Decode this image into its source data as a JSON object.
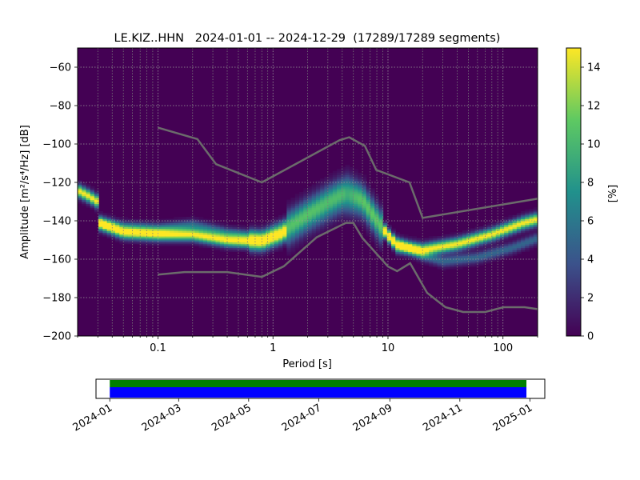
{
  "chart_data": {
    "type": "heatmap",
    "title": "LE.KIZ..HHN   2024-01-01 -- 2024-12-29  (17289/17289 segments)",
    "xlabel": "Period [s]",
    "ylabel": "Amplitude [m²/s⁴/Hz] [dB]",
    "x_scale": "log",
    "xlim": [
      0.02,
      200
    ],
    "ylim": [
      -200,
      -50
    ],
    "x_ticks": [
      {
        "value": 0.1,
        "label": "0.1"
      },
      {
        "value": 1,
        "label": "1"
      },
      {
        "value": 10,
        "label": "10"
      },
      {
        "value": 100,
        "label": "100"
      }
    ],
    "y_ticks": [
      {
        "value": -60,
        "label": "−60"
      },
      {
        "value": -80,
        "label": "−80"
      },
      {
        "value": -100,
        "label": "−100"
      },
      {
        "value": -120,
        "label": "−120"
      },
      {
        "value": -140,
        "label": "−140"
      },
      {
        "value": -160,
        "label": "−160"
      },
      {
        "value": -180,
        "label": "−180"
      },
      {
        "value": -200,
        "label": "−200"
      }
    ],
    "grid": true,
    "colormap": "viridis",
    "colorbar": {
      "label": "[%]",
      "range": [
        0,
        15
      ],
      "ticks": [
        {
          "value": 0,
          "label": "0"
        },
        {
          "value": 2,
          "label": "2"
        },
        {
          "value": 4,
          "label": "4"
        },
        {
          "value": 6,
          "label": "6"
        },
        {
          "value": 8,
          "label": "8"
        },
        {
          "value": 10,
          "label": "10"
        },
        {
          "value": 12,
          "label": "12"
        },
        {
          "value": 14,
          "label": "14"
        }
      ]
    },
    "density_modes": [
      {
        "points": [
          [
            0.02,
            -124
          ],
          [
            0.025,
            -127
          ],
          [
            0.03,
            -130
          ],
          [
            0.03,
            -141
          ],
          [
            0.05,
            -146
          ],
          [
            0.1,
            -147
          ],
          [
            0.2,
            -147
          ],
          [
            0.4,
            -150
          ],
          [
            0.8,
            -151
          ],
          [
            1.2,
            -147
          ],
          [
            2,
            -138
          ],
          [
            4,
            -128
          ],
          [
            6,
            -130
          ],
          [
            8,
            -140
          ],
          [
            12,
            -153
          ],
          [
            20,
            -155
          ],
          [
            40,
            -152
          ],
          [
            80,
            -147
          ],
          [
            150,
            -141
          ],
          [
            200,
            -139
          ]
        ],
        "peak_pct": 15
      },
      {
        "points": [
          [
            0.03,
            -140
          ],
          [
            0.05,
            -143
          ],
          [
            0.1,
            -144
          ],
          [
            0.2,
            -142
          ],
          [
            0.4,
            -146
          ],
          [
            0.8,
            -148
          ],
          [
            1.5,
            -140
          ],
          [
            3,
            -128
          ],
          [
            4.5,
            -122
          ],
          [
            6,
            -128
          ],
          [
            10,
            -148
          ],
          [
            20,
            -158
          ],
          [
            30,
            -161
          ],
          [
            60,
            -159
          ],
          [
            120,
            -154
          ],
          [
            200,
            -149
          ]
        ],
        "peak_pct": 9
      }
    ],
    "noise_models": {
      "high": [
        [
          0.1,
          -91.5
        ],
        [
          0.22,
          -97.4
        ],
        [
          0.32,
          -110.5
        ],
        [
          0.8,
          -120
        ],
        [
          3.8,
          -98
        ],
        [
          4.6,
          -96.5
        ],
        [
          6.3,
          -101
        ],
        [
          7.9,
          -113.5
        ],
        [
          15.4,
          -120
        ],
        [
          20,
          -138.5
        ],
        [
          200,
          -128.5
        ]
      ],
      "low": [
        [
          0.1,
          -168
        ],
        [
          0.17,
          -166.7
        ],
        [
          0.4,
          -166.7
        ],
        [
          0.8,
          -169.2
        ],
        [
          1.24,
          -163.7
        ],
        [
          2.4,
          -148.6
        ],
        [
          4.3,
          -141.1
        ],
        [
          5,
          -141.1
        ],
        [
          6,
          -149
        ],
        [
          10,
          -163.8
        ],
        [
          12,
          -166.2
        ],
        [
          15.6,
          -162.1
        ],
        [
          21.9,
          -177.5
        ],
        [
          31.6,
          -185
        ],
        [
          45,
          -187.5
        ],
        [
          70,
          -187.5
        ],
        [
          101,
          -185
        ],
        [
          154,
          -185
        ],
        [
          200,
          -186
        ]
      ]
    },
    "coverage": {
      "x_range": [
        "2023-12-20",
        "2025-01-14"
      ],
      "data_range": [
        "2024-01-01",
        "2024-12-29"
      ],
      "colors": {
        "top": "#008000",
        "bottom": "#0000ff"
      },
      "ticks": [
        "2024-01",
        "2024-03",
        "2024-05",
        "2024-07",
        "2024-09",
        "2024-11",
        "2025-01"
      ]
    }
  }
}
